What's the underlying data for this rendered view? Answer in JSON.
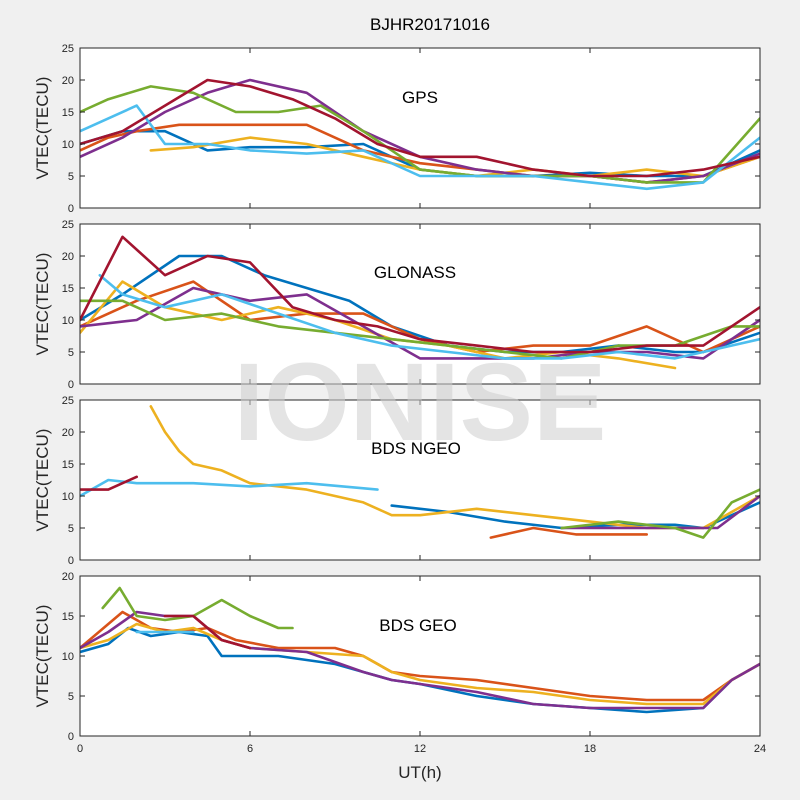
{
  "title": "BJHR20171016",
  "watermark": "IONISE",
  "chart_data": [
    {
      "type": "line",
      "panel_label": "GPS",
      "ylabel": "VTEC(TECU)",
      "xlim": [
        0,
        24
      ],
      "ylim": [
        0,
        25
      ],
      "xticks": [
        0,
        6,
        12,
        18,
        24
      ],
      "yticks": [
        0,
        5,
        10,
        15,
        20,
        25
      ],
      "series": [
        {
          "color": "#0072bd",
          "x": [
            0,
            1.5,
            3,
            4.5,
            6,
            8,
            10,
            12,
            14,
            16,
            18,
            20,
            22,
            24
          ],
          "y": [
            10,
            12,
            12,
            9,
            9.5,
            9.5,
            10,
            6,
            5,
            5,
            5.5,
            5,
            5,
            9
          ]
        },
        {
          "color": "#d95319",
          "x": [
            0,
            1,
            2,
            3.5,
            5,
            6.5,
            8,
            10,
            12,
            14,
            16,
            18,
            20,
            22,
            24
          ],
          "y": [
            9,
            11,
            12,
            13,
            13,
            13,
            13,
            9,
            7,
            6,
            5,
            5,
            4,
            5,
            8
          ]
        },
        {
          "color": "#edb120",
          "x": [
            2.5,
            4,
            6,
            8,
            10,
            12,
            14,
            16,
            18,
            20,
            22,
            24
          ],
          "y": [
            9,
            9.5,
            11,
            10,
            8,
            6,
            5,
            6,
            5,
            6,
            5,
            8
          ]
        },
        {
          "color": "#7e2f8e",
          "x": [
            0,
            1.5,
            3,
            4.5,
            6,
            8,
            10,
            12,
            14,
            16,
            18,
            20,
            22,
            24
          ],
          "y": [
            8,
            11,
            15,
            18,
            20,
            18,
            12,
            8,
            6,
            5,
            5,
            4,
            5,
            8.5
          ]
        },
        {
          "color": "#77ac30",
          "x": [
            0,
            1,
            2.5,
            4,
            5.5,
            7,
            8.5,
            10,
            12,
            14,
            16,
            18,
            20,
            22,
            24
          ],
          "y": [
            15,
            17,
            19,
            18,
            15,
            15,
            16,
            12,
            6,
            5,
            5,
            5,
            4,
            4,
            14
          ]
        },
        {
          "color": "#4dbeee",
          "x": [
            0,
            1,
            2,
            3,
            4.5,
            6,
            8,
            10,
            12,
            14,
            16,
            18,
            20,
            22,
            24
          ],
          "y": [
            12,
            14,
            16,
            10,
            10,
            9,
            8.5,
            9,
            5,
            5,
            5,
            4,
            3,
            4,
            11
          ]
        },
        {
          "color": "#a2142f",
          "x": [
            0,
            1.5,
            3,
            4.5,
            6,
            7.5,
            9,
            10.5,
            12,
            14,
            16,
            18,
            20,
            22,
            24
          ],
          "y": [
            10,
            12,
            16,
            20,
            19,
            17,
            14,
            10,
            8,
            8,
            6,
            5,
            5,
            6,
            8
          ]
        }
      ]
    },
    {
      "type": "line",
      "panel_label": "GLONASS",
      "ylabel": "VTEC(TECU)",
      "xlim": [
        0,
        24
      ],
      "ylim": [
        0,
        25
      ],
      "xticks": [
        0,
        6,
        12,
        18,
        24
      ],
      "yticks": [
        0,
        5,
        10,
        15,
        20,
        25
      ],
      "series": [
        {
          "color": "#0072bd",
          "x": [
            0,
            1.5,
            3.5,
            5,
            6.5,
            8,
            9.5,
            11,
            13,
            15,
            17,
            19,
            21,
            22,
            24
          ],
          "y": [
            10,
            14,
            20,
            20,
            17,
            15,
            13,
            9,
            6,
            5,
            5,
            6,
            5,
            5,
            8
          ]
        },
        {
          "color": "#d95319",
          "x": [
            0,
            2,
            4,
            6,
            8,
            10,
            12,
            14,
            16,
            18,
            20,
            22,
            24
          ],
          "y": [
            9,
            13,
            16,
            10,
            11,
            11,
            7,
            5,
            6,
            6,
            9,
            5,
            9
          ]
        },
        {
          "color": "#edb120",
          "x": [
            0,
            1.5,
            3,
            5,
            7,
            9,
            11,
            13,
            15,
            17,
            19,
            21
          ],
          "y": [
            8,
            16,
            12,
            10,
            12,
            10,
            7,
            6,
            4,
            5,
            4,
            2.5
          ]
        },
        {
          "color": "#7e2f8e",
          "x": [
            0,
            2,
            4,
            6,
            8,
            10,
            12,
            14,
            16,
            18,
            20,
            22,
            24
          ],
          "y": [
            9,
            10,
            15,
            13,
            14,
            9,
            4,
            4,
            4,
            5,
            5,
            4,
            10
          ]
        },
        {
          "color": "#77ac30",
          "x": [
            0,
            1.5,
            3,
            5,
            7,
            9,
            11,
            13,
            15,
            17,
            19,
            21,
            23,
            24
          ],
          "y": [
            13,
            13,
            10,
            11,
            9,
            8,
            7,
            6,
            5,
            4,
            6,
            6,
            9,
            9
          ]
        },
        {
          "color": "#4dbeee",
          "x": [
            0.7,
            1.5,
            3,
            5,
            7,
            9,
            11,
            13,
            15,
            17,
            19,
            21,
            22,
            24
          ],
          "y": [
            17,
            14,
            12,
            14,
            11,
            8,
            6,
            5,
            4,
            4,
            5,
            4,
            5,
            7
          ]
        },
        {
          "color": "#a2142f",
          "x": [
            0,
            1.5,
            3,
            4.5,
            6,
            7.5,
            9,
            10.5,
            12,
            14,
            16,
            18,
            20,
            22,
            24
          ],
          "y": [
            10,
            23,
            17,
            20,
            19,
            12,
            10,
            9,
            7,
            6,
            5,
            5,
            6,
            6,
            12
          ]
        }
      ]
    },
    {
      "type": "line",
      "panel_label": "BDS NGEO",
      "ylabel": "VTEC(TECU)",
      "xlim": [
        0,
        24
      ],
      "ylim": [
        0,
        25
      ],
      "xticks": [
        0,
        6,
        12,
        18,
        24
      ],
      "yticks": [
        0,
        5,
        10,
        15,
        20,
        25
      ],
      "series": [
        {
          "color": "#0072bd",
          "x": [
            11,
            13,
            15,
            17,
            19,
            21,
            22,
            24
          ],
          "y": [
            8.5,
            7.5,
            6,
            5,
            5.5,
            5.5,
            5,
            9
          ]
        },
        {
          "color": "#d95319",
          "x": [
            14.5,
            16,
            17.5,
            20
          ],
          "y": [
            3.5,
            5,
            4,
            4
          ]
        },
        {
          "color": "#edb120",
          "x": [
            2.5,
            3,
            3.5,
            4,
            5,
            6,
            8,
            10,
            11,
            12,
            14,
            16,
            18,
            20,
            22,
            24
          ],
          "y": [
            24,
            20,
            17,
            15,
            14,
            12,
            11,
            9,
            7,
            7,
            8,
            7,
            6,
            5,
            5,
            10
          ]
        },
        {
          "color": "#7e2f8e",
          "x": [
            17,
            19,
            21,
            22.5,
            24
          ],
          "y": [
            5,
            5,
            5,
            5,
            10
          ]
        },
        {
          "color": "#77ac30",
          "x": [
            17,
            19,
            21,
            22,
            23,
            24
          ],
          "y": [
            5,
            6,
            5,
            3.5,
            9,
            11
          ]
        },
        {
          "color": "#4dbeee",
          "x": [
            0,
            1,
            2,
            3,
            4,
            6,
            8,
            10.5
          ],
          "y": [
            10,
            12.5,
            12,
            12,
            12,
            11.5,
            12,
            11
          ]
        },
        {
          "color": "#a2142f",
          "x": [
            0,
            1,
            2
          ],
          "y": [
            11,
            11,
            13
          ]
        }
      ]
    },
    {
      "type": "line",
      "panel_label": "BDS GEO",
      "ylabel": "VTEC(TECU)",
      "xlim": [
        0,
        24
      ],
      "ylim": [
        0,
        20
      ],
      "xticks": [
        0,
        6,
        12,
        18,
        24
      ],
      "yticks": [
        0,
        5,
        10,
        15,
        20
      ],
      "series": [
        {
          "color": "#0072bd",
          "x": [
            0,
            1,
            1.7,
            2.5,
            3.5,
            4.5,
            5,
            6,
            7,
            8,
            9,
            10,
            11,
            12,
            14,
            16,
            18,
            20,
            22,
            23,
            24
          ],
          "y": [
            10.5,
            11.5,
            13.5,
            12.5,
            13,
            12.5,
            10,
            10,
            10,
            9.5,
            9,
            8,
            7,
            6.5,
            5,
            4,
            3.5,
            3,
            3.5,
            7,
            9
          ]
        },
        {
          "color": "#d95319",
          "x": [
            0,
            1,
            1.5,
            2.5,
            3.5,
            4.5,
            5.5,
            7,
            8,
            9,
            10,
            11,
            12,
            14,
            16,
            18,
            20,
            22,
            23,
            24
          ],
          "y": [
            11,
            14,
            15.5,
            13.5,
            13,
            13.5,
            12,
            11,
            11,
            11,
            10,
            8,
            7.5,
            7,
            6,
            5,
            4.5,
            4.5,
            7,
            9
          ]
        },
        {
          "color": "#edb120",
          "x": [
            0,
            1,
            2,
            3,
            4,
            5,
            6,
            8,
            10,
            11,
            12,
            14,
            16,
            18,
            20,
            22,
            23,
            24
          ],
          "y": [
            11,
            12,
            14,
            13,
            13.5,
            12,
            11,
            10.5,
            10,
            8,
            7,
            6,
            5.5,
            4.5,
            4,
            4,
            7,
            9
          ]
        },
        {
          "color": "#7e2f8e",
          "x": [
            0,
            1,
            2,
            3,
            4,
            5,
            6,
            8,
            10,
            11,
            12,
            14,
            16,
            18,
            20,
            22,
            23,
            24
          ],
          "y": [
            11,
            13,
            15.5,
            15,
            15,
            12,
            11,
            10.5,
            8,
            7,
            6.5,
            5.5,
            4,
            3.5,
            3.5,
            3.5,
            7,
            9
          ]
        },
        {
          "color": "#77ac30",
          "x": [
            0.8,
            1.4,
            2,
            3,
            4,
            5,
            6,
            7,
            7.5
          ],
          "y": [
            16,
            18.5,
            15,
            14.5,
            15,
            17,
            15,
            13.5,
            13.5
          ]
        },
        {
          "color": "#4dbeee",
          "x": [
            2,
            3,
            4
          ],
          "y": [
            13,
            13,
            13
          ]
        },
        {
          "color": "#a2142f",
          "x": [
            3,
            4,
            5,
            6
          ],
          "y": [
            15,
            15,
            12,
            11
          ]
        }
      ]
    }
  ],
  "xlabel": "UT(h)"
}
